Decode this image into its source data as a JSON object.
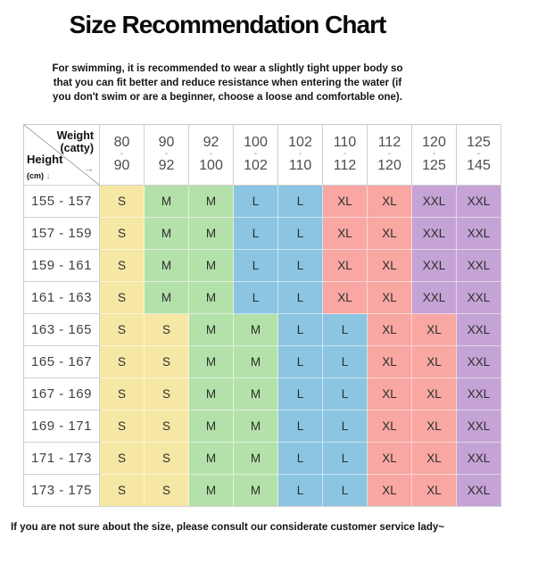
{
  "page": {
    "title": "Size Recommendation Chart",
    "subtitle_lines": [
      "For swimming, it is recommended to wear a slightly tight upper body so",
      "that you can fit better and reduce resistance when entering the water (if",
      "you don't swim or are a beginner, choose a loose and comfortable one)."
    ],
    "footer": "If you are not sure about the size, please consult our considerate customer service lady~"
  },
  "corner": {
    "weight_label": "Weight",
    "weight_unit": "(catty)",
    "right_arrow": "→",
    "height_label": "Height",
    "height_unit": "(cm)",
    "down_arrow": "↓"
  },
  "size_colors": {
    "S": "#f6e8a4",
    "M": "#b4e1aa",
    "L": "#8bc5e2",
    "XL": "#f8a7a3",
    "XXL": "#c5a3d6"
  },
  "chart_data": {
    "type": "table",
    "title": "Size Recommendation Chart",
    "column_axis": "Weight (catty)",
    "row_axis": "Height (cm)",
    "range_separator": "-",
    "columns": [
      {
        "top": "80",
        "bottom": "90"
      },
      {
        "top": "90",
        "bottom": "92"
      },
      {
        "top": "92",
        "bottom": "100"
      },
      {
        "top": "100",
        "bottom": "102"
      },
      {
        "top": "102",
        "bottom": "110"
      },
      {
        "top": "110",
        "bottom": "112"
      },
      {
        "top": "112",
        "bottom": "120"
      },
      {
        "top": "120",
        "bottom": "125"
      },
      {
        "top": "125",
        "bottom": "145"
      }
    ],
    "rows": [
      {
        "height": "155 - 157",
        "sizes": [
          "S",
          "M",
          "M",
          "L",
          "L",
          "XL",
          "XL",
          "XXL",
          "XXL"
        ]
      },
      {
        "height": "157 - 159",
        "sizes": [
          "S",
          "M",
          "M",
          "L",
          "L",
          "XL",
          "XL",
          "XXL",
          "XXL"
        ]
      },
      {
        "height": "159 - 161",
        "sizes": [
          "S",
          "M",
          "M",
          "L",
          "L",
          "XL",
          "XL",
          "XXL",
          "XXL"
        ]
      },
      {
        "height": "161 - 163",
        "sizes": [
          "S",
          "M",
          "M",
          "L",
          "L",
          "XL",
          "XL",
          "XXL",
          "XXL"
        ]
      },
      {
        "height": "163 - 165",
        "sizes": [
          "S",
          "S",
          "M",
          "M",
          "L",
          "L",
          "XL",
          "XL",
          "XXL"
        ]
      },
      {
        "height": "165 - 167",
        "sizes": [
          "S",
          "S",
          "M",
          "M",
          "L",
          "L",
          "XL",
          "XL",
          "XXL"
        ]
      },
      {
        "height": "167 - 169",
        "sizes": [
          "S",
          "S",
          "M",
          "M",
          "L",
          "L",
          "XL",
          "XL",
          "XXL"
        ]
      },
      {
        "height": "169 - 171",
        "sizes": [
          "S",
          "S",
          "M",
          "M",
          "L",
          "L",
          "XL",
          "XL",
          "XXL"
        ]
      },
      {
        "height": "171 - 173",
        "sizes": [
          "S",
          "S",
          "M",
          "M",
          "L",
          "L",
          "XL",
          "XL",
          "XXL"
        ]
      },
      {
        "height": "173 - 175",
        "sizes": [
          "S",
          "S",
          "M",
          "M",
          "L",
          "L",
          "XL",
          "XL",
          "XXL"
        ]
      }
    ]
  }
}
